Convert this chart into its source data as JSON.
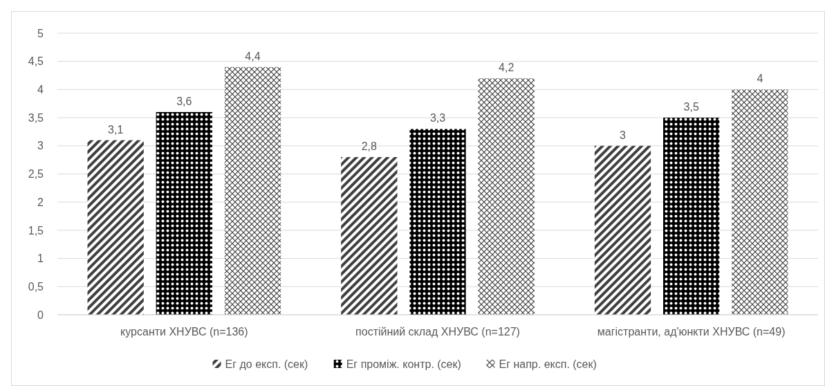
{
  "chart_data": {
    "type": "bar",
    "categories": [
      "курсанти ХНУВС (n=136)",
      "постійний склад ХНУВС (n=127)",
      "магістранти, ад'юнкти ХНУВС (n=49)"
    ],
    "series": [
      {
        "name": "Ег до експ. (сек)",
        "color": "#404040",
        "values": [
          3.1,
          2.8,
          3.0
        ],
        "value_labels": [
          "3,1",
          "2,8",
          "3"
        ]
      },
      {
        "name": "Ег проміж. контр. (сек)",
        "color": "#000000",
        "values": [
          3.6,
          3.3,
          3.5
        ],
        "value_labels": [
          "3,6",
          "3,3",
          "3,5"
        ]
      },
      {
        "name": "Ег напр. експ. (сек)",
        "color": "#404040",
        "values": [
          4.4,
          4.2,
          4.0
        ],
        "value_labels": [
          "4,4",
          "4,2",
          "4"
        ]
      }
    ],
    "ylim": [
      0,
      5
    ],
    "yticks": [
      0,
      {
        "value": 0.5,
        "label": "0,5"
      },
      1,
      {
        "value": 1.5,
        "label": "1,5"
      },
      2,
      {
        "value": 2.5,
        "label": "2,5"
      },
      3,
      {
        "value": 3.5,
        "label": "3,5"
      },
      4,
      {
        "value": 4.5,
        "label": "4,5"
      },
      5
    ],
    "grid": "y",
    "legend": "bottom"
  }
}
